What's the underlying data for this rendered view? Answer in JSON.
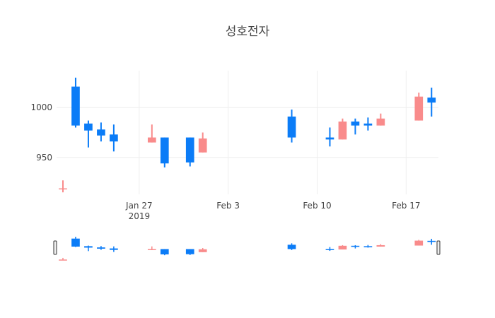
{
  "chart_data": {
    "type": "candlestick",
    "title": "성호전자",
    "x": [
      "2019-01-21",
      "2019-01-22",
      "2019-01-23",
      "2019-01-24",
      "2019-01-25",
      "2019-01-28",
      "2019-01-29",
      "2019-01-31",
      "2019-02-01",
      "2019-02-08",
      "2019-02-11",
      "2019-02-12",
      "2019-02-13",
      "2019-02-14",
      "2019-02-15",
      "2019-02-18",
      "2019-02-19"
    ],
    "open": [
      918,
      1021,
      984,
      978,
      973,
      965,
      970,
      970,
      955,
      991,
      970,
      968,
      986,
      984,
      982,
      987,
      1010
    ],
    "high": [
      927,
      1030,
      987,
      985,
      983,
      983,
      970,
      970,
      975,
      998,
      980,
      989,
      989,
      990,
      994,
      1015,
      1020
    ],
    "low": [
      915,
      980,
      960,
      966,
      956,
      965,
      940,
      941,
      955,
      965,
      961,
      968,
      973,
      977,
      982,
      987,
      991
    ],
    "close": [
      919,
      982,
      977,
      972,
      966,
      970,
      944,
      945,
      969,
      970,
      968,
      986,
      982,
      982,
      989,
      1011,
      1005
    ],
    "increasing_color": "#f98b8b",
    "decreasing_color": "#0b7cf7",
    "xlim": [
      "2019-01-20T12:00Z",
      "2019-02-19T13:00Z"
    ],
    "xticks": [
      {
        "value": "2019-01-27",
        "label": "Jan 27\n2019"
      },
      {
        "value": "2019-02-03",
        "label": "Feb 3"
      },
      {
        "value": "2019-02-10",
        "label": "Feb 10"
      },
      {
        "value": "2019-02-17",
        "label": "Feb 17"
      }
    ],
    "ylim": [
      913,
      1037
    ],
    "yticks": [
      950,
      1000
    ],
    "grid": true,
    "rangeslider": true
  }
}
